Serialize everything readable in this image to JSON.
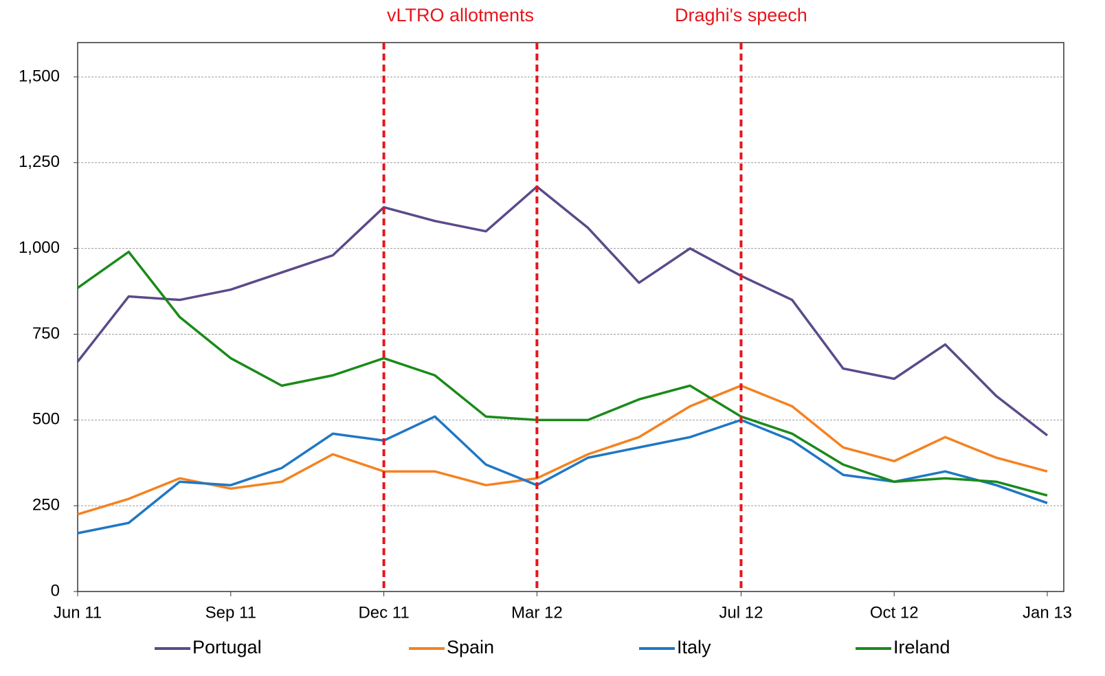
{
  "chart_data": {
    "type": "line",
    "categories": [
      "Jun 11",
      "Jul 11",
      "Aug 11",
      "Sep 11",
      "Oct 11",
      "Nov 11",
      "Dec 11",
      "Jan 12",
      "Feb 12",
      "Mar 12",
      "Apr 12",
      "May 12",
      "Jun 12",
      "Jul 12",
      "Aug 12",
      "Sep 12",
      "Oct 12",
      "Nov 12",
      "Dec 12",
      "Jan 13"
    ],
    "series": [
      {
        "name": "Portugal",
        "color": "#5b4a8a",
        "values": [
          670,
          860,
          850,
          880,
          930,
          980,
          1120,
          1080,
          1050,
          1180,
          1060,
          900,
          1000,
          920,
          850,
          650,
          620,
          720,
          570,
          455
        ]
      },
      {
        "name": "Spain",
        "color": "#f58220",
        "values": [
          225,
          270,
          330,
          300,
          320,
          400,
          350,
          350,
          310,
          330,
          400,
          450,
          540,
          600,
          540,
          420,
          380,
          450,
          390,
          350
        ]
      },
      {
        "name": "Italy",
        "color": "#1f77c4",
        "values": [
          170,
          200,
          320,
          310,
          360,
          460,
          440,
          510,
          370,
          310,
          390,
          420,
          450,
          500,
          440,
          340,
          320,
          350,
          310,
          258
        ]
      },
      {
        "name": "Ireland",
        "color": "#1a8a1a",
        "values": [
          885,
          990,
          800,
          680,
          600,
          630,
          680,
          630,
          510,
          500,
          500,
          560,
          600,
          510,
          460,
          370,
          320,
          330,
          320,
          280
        ]
      }
    ],
    "ylim": [
      0,
      1600
    ],
    "yticks": [
      0,
      250,
      500,
      750,
      {
        "value": 1000,
        "label": "1,000"
      },
      {
        "value": 1250,
        "label": "1,250"
      },
      {
        "value": 1500,
        "label": "1,500"
      }
    ],
    "xticks": [
      "Jun 11",
      "Sep 11",
      "Dec 11",
      "Mar 12",
      "Jul 12",
      "Oct 12",
      "Jan 13"
    ],
    "grid": true,
    "legend": "bottom",
    "annotations": [
      {
        "text": "vLTRO allotments",
        "x": [
          "Dec 11",
          "Mar 12"
        ],
        "color": "#e8141c"
      },
      {
        "text": "Draghi's speech",
        "x": [
          "Jul 12"
        ],
        "color": "#e8141c"
      }
    ]
  }
}
